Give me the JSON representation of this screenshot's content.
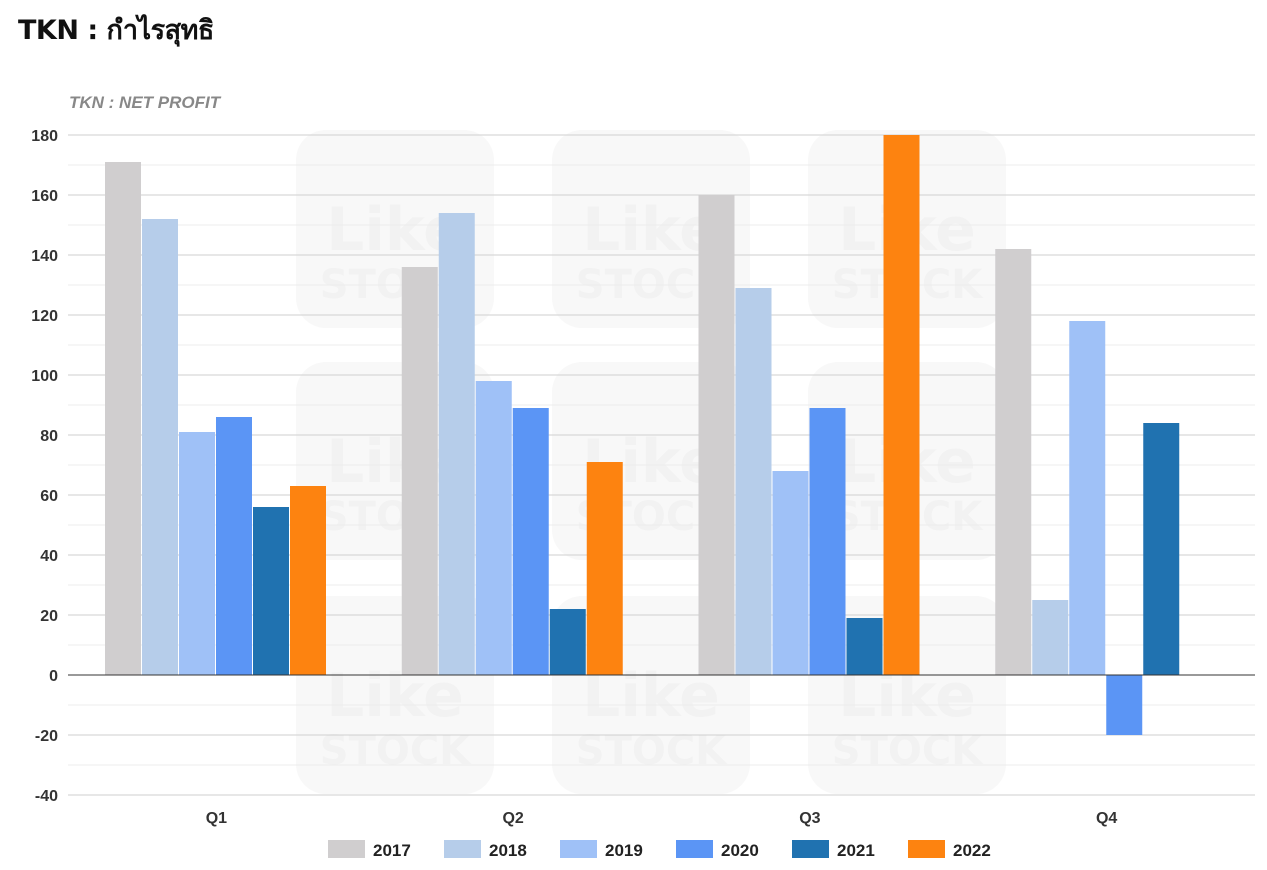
{
  "page": {
    "heading": "TKN : กำไรสุทธิ"
  },
  "watermark": {
    "line1": "Like",
    "line2": "STOCK"
  },
  "chart_data": {
    "type": "bar",
    "title": "TKN : NET PROFIT",
    "xlabel": "",
    "ylabel": "",
    "categories": [
      "Q1",
      "Q2",
      "Q3",
      "Q4"
    ],
    "ylim": [
      -40,
      180
    ],
    "yticks": [
      180,
      160,
      140,
      120,
      100,
      80,
      60,
      40,
      20,
      0,
      -20,
      -40
    ],
    "grid": true,
    "legend_position": "bottom",
    "series": [
      {
        "name": "2017",
        "color": "#d0cecf",
        "values": [
          171,
          136,
          160,
          142
        ]
      },
      {
        "name": "2018",
        "color": "#b6cdea",
        "values": [
          152,
          154,
          129,
          25
        ]
      },
      {
        "name": "2019",
        "color": "#9fc1f7",
        "values": [
          81,
          98,
          68,
          118
        ]
      },
      {
        "name": "2020",
        "color": "#5b95f5",
        "values": [
          86,
          89,
          89,
          -20
        ]
      },
      {
        "name": "2021",
        "color": "#2072b0",
        "values": [
          56,
          22,
          19,
          84
        ]
      },
      {
        "name": "2022",
        "color": "#fd8310",
        "values": [
          63,
          71,
          180,
          null
        ]
      }
    ]
  }
}
